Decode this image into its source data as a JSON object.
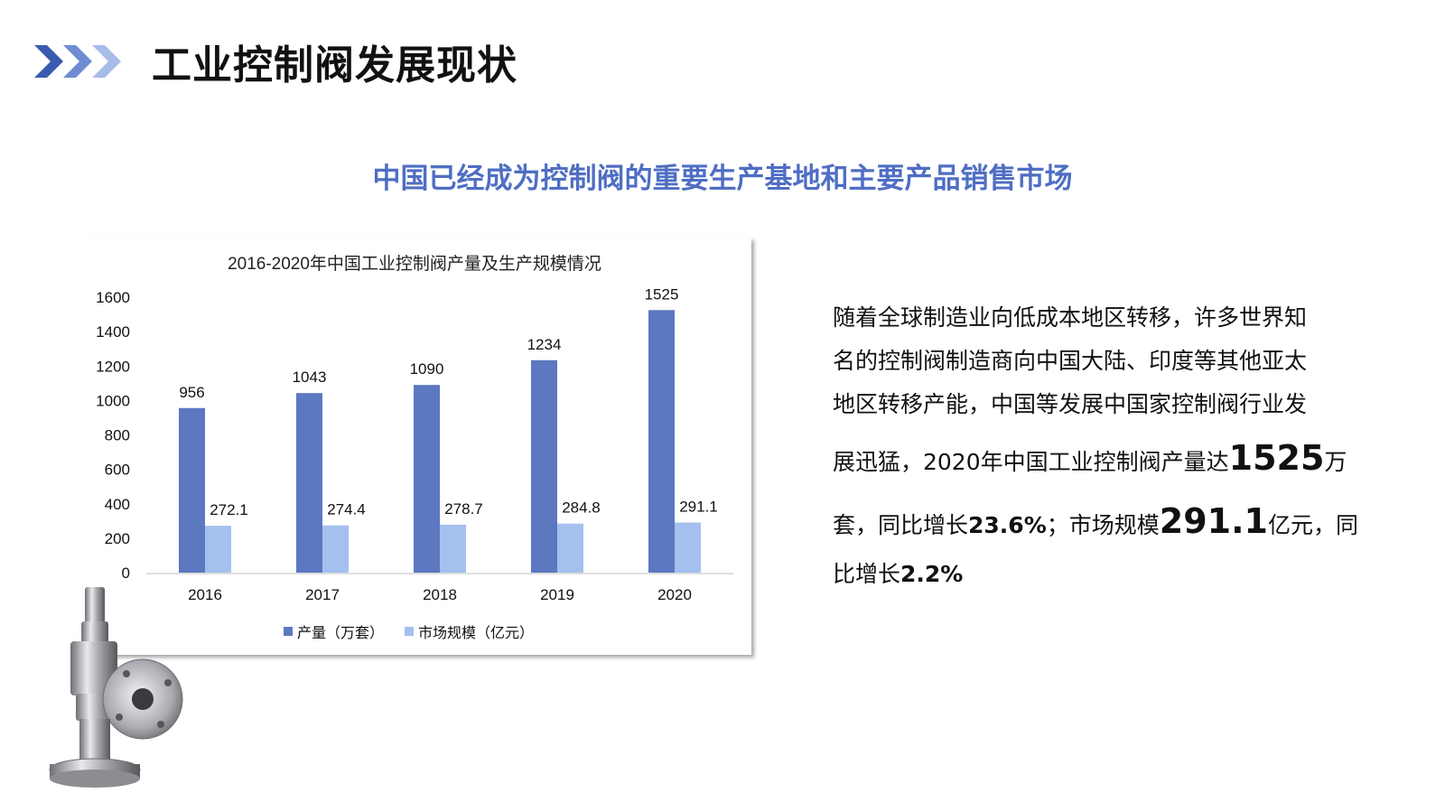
{
  "page": {
    "title": "工业控制阀发展现状",
    "subtitle": "中国已经成为控制阀的重要生产基地和主要产品销售市场"
  },
  "text": {
    "line1": "随着全球制造业向低成本地区转移，许多世界知",
    "line2": "名的控制阀制造商向中国大陆、印度等其他亚太",
    "line3": "地区转移产能，中国等发展中国家控制阀行业发",
    "line4_a": "展迅猛，2020年中国工业控制阀产量达",
    "line4_b": "1525",
    "line4_c": "万",
    "line5_a": "套，同比增长",
    "line5_b": "23.6%",
    "line5_c": "；市场规模",
    "line5_d": "291.1",
    "line5_e": "亿元，同",
    "line6_a": "比增长",
    "line6_b": "2.2%"
  },
  "colors": {
    "accent": "#4f6ec3",
    "series1": "#5b78c0",
    "series2": "#a4c0ee",
    "chevron1": "#3b5bb0",
    "chevron2": "#6f8bd3",
    "chevron3": "#a8bce9"
  },
  "chart_data": {
    "type": "bar",
    "title": "2016-2020年中国工业控制阀产量及生产规模情况",
    "categories": [
      "2016",
      "2017",
      "2018",
      "2019",
      "2020"
    ],
    "series": [
      {
        "name": "产量（万套）",
        "values": [
          956,
          1043,
          1090,
          1234,
          1525
        ],
        "labels": [
          "956",
          "1043",
          "1090",
          "1234",
          "1525"
        ]
      },
      {
        "name": "市场规模（亿元）",
        "values": [
          272.1,
          274.4,
          278.7,
          284.8,
          291.1
        ],
        "labels": [
          "272.1",
          "274.4",
          "278.7",
          "284.8",
          "291.1"
        ]
      }
    ],
    "ylim": [
      0,
      1600
    ],
    "yticks": [
      0,
      200,
      400,
      600,
      800,
      1000,
      1200,
      1400,
      1600
    ],
    "legend": "bottom",
    "grid": false
  }
}
